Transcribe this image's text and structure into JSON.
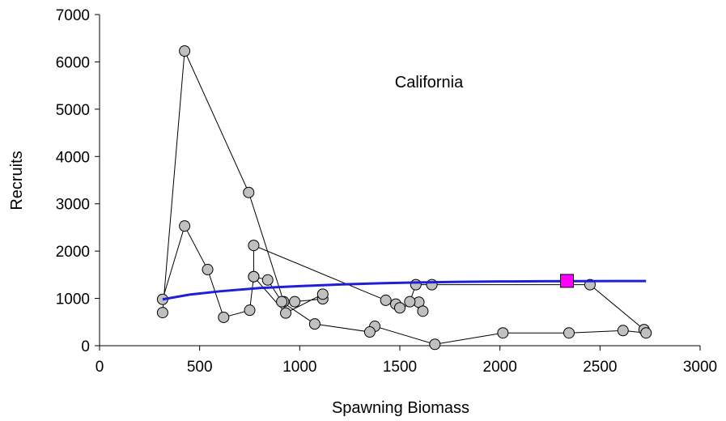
{
  "chart_data": {
    "type": "scatter",
    "title": "",
    "annotation": "California",
    "xlabel": "Spawning Biomass",
    "ylabel": "Recruits",
    "xlim": [
      0,
      3000
    ],
    "ylim": [
      0,
      7000
    ],
    "x_ticks": [
      0,
      500,
      1000,
      1500,
      2000,
      2500,
      3000
    ],
    "y_ticks": [
      0,
      1000,
      2000,
      3000,
      4000,
      5000,
      6000,
      7000
    ],
    "x_tick_labels": [
      "0",
      "500",
      "1000",
      "1500",
      "2000",
      "2500",
      "3000"
    ],
    "y_tick_labels": [
      "0",
      "1000",
      "2000",
      "3000",
      "4000",
      "5000",
      "6000",
      "7000"
    ],
    "grid": false,
    "series": [
      {
        "kind": "connected-scatter",
        "marker": "circle",
        "color": "#c0c0c0",
        "x": [
          315,
          425,
          745,
          920,
          975,
          1115,
          1115,
          930,
          770,
          770,
          1430,
          1480,
          1500,
          1595,
          1615,
          1550,
          1580,
          1660,
          2450,
          2720,
          2730,
          2615,
          2345,
          2015,
          1675,
          1375,
          1350,
          1075,
          910,
          840,
          770,
          750,
          620,
          540,
          425,
          315
        ],
        "y": [
          700,
          6230,
          3240,
          930,
          930,
          990,
          1090,
          690,
          1460,
          2120,
          960,
          880,
          800,
          920,
          730,
          930,
          1290,
          1290,
          1290,
          340,
          270,
          320,
          270,
          270,
          30,
          410,
          290,
          460,
          930,
          1390,
          1460,
          750,
          600,
          1610,
          2530,
          980
        ]
      },
      {
        "kind": "fitted-curve",
        "color": "#1f1fd8",
        "x": [
          315,
          450,
          600,
          800,
          1000,
          1200,
          1400,
          1600,
          1800,
          2000,
          2200,
          2400,
          2600,
          2730
        ],
        "y": [
          980,
          1080,
          1150,
          1220,
          1260,
          1295,
          1320,
          1338,
          1350,
          1358,
          1362,
          1365,
          1367,
          1368
        ]
      },
      {
        "kind": "highlight-point",
        "marker": "square",
        "color": "#ff00ff",
        "x": [
          2335
        ],
        "y": [
          1370
        ]
      }
    ]
  }
}
